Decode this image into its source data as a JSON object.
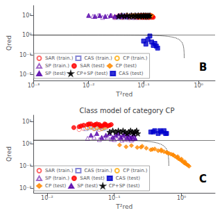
{
  "chart_data": [
    {
      "type": "scatter",
      "panel_label": "B",
      "x_label": "T²red",
      "y_label": "Qred",
      "log": true,
      "grid": false,
      "legend": "lower left",
      "xlim": [
        0.001,
        1.9952623149688795
      ],
      "ylim": [
        0.005011872336272725,
        31.622776601683793
      ],
      "xticks": [
        {
          "value": 0.001,
          "label": "10⁻³"
        },
        {
          "value": 0.01,
          "label": "10⁻²"
        },
        {
          "value": 0.1,
          "label": "10⁻¹"
        },
        {
          "value": 1,
          "label": "10⁰"
        }
      ],
      "yticks": [
        {
          "value": 0.01,
          "label": "10⁻²"
        },
        {
          "value": 0.1,
          "label": "10⁻¹"
        },
        {
          "value": 1,
          "label": "10⁰"
        },
        {
          "value": 10,
          "label": "10¹"
        }
      ],
      "q_limit": 1.0,
      "t_limit": 0.55,
      "series": [
        {
          "name": "SAR (train.)",
          "color": "#FF4444",
          "marker": "circle_open",
          "x": [
            0.03,
            0.034,
            0.038,
            0.042,
            0.046,
            0.05,
            0.055,
            0.058,
            0.06,
            0.064,
            0.068,
            0.072,
            0.076,
            0.08,
            0.085,
            0.09,
            0.095,
            0.1,
            0.105,
            0.11
          ],
          "y": [
            8,
            9,
            10,
            8,
            9,
            10,
            8,
            9,
            10,
            8,
            9,
            10,
            8,
            9,
            10,
            8,
            9,
            10,
            8,
            9
          ]
        },
        {
          "name": "CAS (train.)",
          "color": "#6666CC",
          "marker": "square_open",
          "x": [
            0.035,
            0.04,
            0.045,
            0.05,
            0.055,
            0.06,
            0.065,
            0.07,
            0.075,
            0.08,
            0.085,
            0.09,
            0.095,
            0.1,
            0.105,
            0.11,
            0.115,
            0.12
          ],
          "y": [
            8,
            9,
            10,
            8,
            9,
            10,
            8,
            9,
            10,
            8,
            9,
            10,
            8,
            9,
            10,
            8,
            9,
            8
          ]
        },
        {
          "name": "CP (train.)",
          "color": "#FFAA00",
          "marker": "circle_open",
          "x": [
            0.04,
            0.045,
            0.05,
            0.055,
            0.06,
            0.065,
            0.07,
            0.075,
            0.08,
            0.085,
            0.09,
            0.095,
            0.1,
            0.105,
            0.11,
            0.115,
            0.12,
            0.125,
            0.13
          ],
          "y": [
            8,
            9,
            10,
            8,
            9,
            10,
            8,
            9,
            10,
            8,
            9,
            10,
            8,
            9,
            10,
            8,
            9,
            8,
            9
          ]
        },
        {
          "name": "SP (train.)",
          "color": "#8844BB",
          "marker": "triangle_open",
          "x": [
            0.012,
            0.015,
            0.018,
            0.022,
            0.026,
            0.03,
            0.034,
            0.038,
            0.042,
            0.046,
            0.05,
            0.055,
            0.06,
            0.065,
            0.07,
            0.075,
            0.08
          ],
          "y": [
            9,
            10,
            8,
            9,
            10,
            8,
            9,
            10,
            8,
            9,
            10,
            8,
            9,
            10,
            8,
            9,
            10
          ]
        },
        {
          "name": "SAR (test)",
          "color": "#FF0000",
          "marker": "circle",
          "x": [
            0.08,
            0.085,
            0.09,
            0.095,
            0.1,
            0.105,
            0.11,
            0.115,
            0.12,
            0.125,
            0.13,
            0.135,
            0.14,
            0.145,
            0.15
          ],
          "y": [
            8,
            9,
            10,
            8,
            9,
            10,
            8,
            9,
            10,
            8,
            9,
            10,
            8,
            9,
            8
          ]
        },
        {
          "name": "CP (test)",
          "color": "#FF8800",
          "marker": "diamond",
          "x": [
            0.06,
            0.065,
            0.07,
            0.075,
            0.08,
            0.085,
            0.09,
            0.095,
            0.1,
            0.105,
            0.11,
            0.115,
            0.12,
            0.125,
            0.13,
            0.135,
            0.14
          ],
          "y": [
            10,
            9,
            10,
            9,
            10,
            9,
            10,
            9,
            10,
            9,
            10,
            9,
            10,
            9,
            10,
            9,
            10
          ]
        },
        {
          "name": "SP (test)",
          "color": "#5500AA",
          "marker": "triangle",
          "x": [
            0.01,
            0.013,
            0.016,
            0.02,
            0.025,
            0.03,
            0.035,
            0.04,
            0.045,
            0.05
          ],
          "y": [
            10,
            9,
            10,
            9,
            10,
            9,
            10,
            9,
            10,
            9
          ]
        },
        {
          "name": "CP+SP (test)",
          "color": "#000000",
          "marker": "star",
          "x": [
            0.035,
            0.04,
            0.045,
            0.05,
            0.055,
            0.06,
            0.065,
            0.07,
            0.075,
            0.08,
            0.085,
            0.09,
            0.095,
            0.1,
            0.105,
            0.11,
            0.115,
            0.12,
            0.125,
            0.13
          ],
          "y": [
            9,
            10,
            9,
            10,
            9,
            10,
            9,
            10,
            9,
            10,
            9,
            10,
            9,
            10,
            9,
            10,
            9,
            10,
            9,
            10
          ]
        },
        {
          "name": "CAS (test)",
          "color": "#0000CC",
          "marker": "square",
          "x": [
            0.1,
            0.11,
            0.12,
            0.13,
            0.14,
            0.15,
            0.16,
            0.17,
            0.18
          ],
          "y": [
            0.5,
            0.35,
            0.6,
            0.9,
            0.45,
            0.3,
            0.38,
            0.28,
            0.22
          ]
        }
      ]
    },
    {
      "type": "scatter",
      "panel_label": "C",
      "title": "Class model of category CP",
      "x_label": "T²red",
      "y_label": "Qred",
      "log": true,
      "grid": false,
      "legend": "lower left",
      "xlim": [
        0.00630957344480193,
        3.1622776601683795
      ],
      "ylim": [
        0.00630957344480193,
        19.952623149688797
      ],
      "xticks": [
        {
          "value": 0.01,
          "label": "10⁻²"
        },
        {
          "value": 0.1,
          "label": "10⁻¹"
        },
        {
          "value": 1,
          "label": "10⁰"
        }
      ],
      "yticks": [
        {
          "value": 0.01,
          "label": "10⁻²"
        },
        {
          "value": 0.1,
          "label": "10⁻¹"
        },
        {
          "value": 1,
          "label": "10⁰"
        },
        {
          "value": 10,
          "label": "10¹"
        }
      ],
      "q_limit": 1.5,
      "t_limit": 0.65,
      "series": [
        {
          "name": "SAR (train.)",
          "color": "#FF6666",
          "marker": "circle_open",
          "x": [
            0.03,
            0.035,
            0.04,
            0.045,
            0.05,
            0.055,
            0.06,
            0.065,
            0.07
          ],
          "y": [
            4.5,
            5,
            5.5,
            6,
            5,
            5.5,
            4.5,
            5,
            6
          ]
        },
        {
          "name": "CAS (train.)",
          "color": "#8888CC",
          "marker": "square_open",
          "x": [
            0.038,
            0.043,
            0.048,
            0.053,
            0.058,
            0.063,
            0.068,
            0.073
          ],
          "y": [
            5,
            5.5,
            6,
            5,
            5.5,
            6,
            5,
            5.5
          ]
        },
        {
          "name": "CP (train.)",
          "color": "#FFAA00",
          "marker": "circle_open",
          "x": [
            0.04,
            0.045,
            0.05,
            0.055,
            0.06,
            0.065,
            0.07,
            0.075
          ],
          "y": [
            5.5,
            6,
            5,
            5.5,
            6,
            5,
            5.5,
            6
          ]
        },
        {
          "name": "SP (train.)",
          "color": "#8844BB",
          "marker": "triangle_open",
          "x": [
            0.04,
            0.05,
            0.06,
            0.07,
            0.08,
            0.09,
            0.1,
            0.11,
            0.12,
            0.13,
            0.14,
            0.15,
            0.16,
            0.17,
            0.18,
            0.19,
            0.2
          ],
          "y": [
            1.8,
            2.0,
            1.6,
            1.9,
            2.1,
            1.7,
            1.6,
            1.8,
            2.0,
            1.5,
            1.7,
            1.9,
            1.6,
            1.8,
            1.5,
            1.7,
            1.9
          ]
        },
        {
          "name": "SAR (test)",
          "color": "#FF0000",
          "marker": "circle",
          "x": [
            0.03,
            0.035,
            0.04,
            0.045,
            0.05,
            0.055,
            0.06,
            0.065,
            0.07,
            0.075,
            0.08,
            0.085,
            0.09,
            0.025,
            0.032,
            0.042,
            0.052,
            0.062,
            0.072
          ],
          "y": [
            6,
            7,
            7.5,
            8,
            7,
            8,
            7.5,
            6.5,
            7,
            7.5,
            6.5,
            7,
            7.5,
            5.5,
            6.5,
            8,
            7.5,
            6.5,
            8
          ]
        },
        {
          "name": "CAS (test)",
          "color": "#0000CC",
          "marker": "square",
          "x": [
            0.35,
            0.4,
            0.45,
            0.5,
            0.55,
            0.6,
            0.38,
            0.48,
            0.58
          ],
          "y": [
            3.5,
            4,
            3,
            3.5,
            4,
            3,
            3.5,
            4,
            3
          ]
        },
        {
          "name": "CP (test)",
          "color": "#FF8800",
          "marker": "diamond",
          "x": [
            0.12,
            0.15,
            0.18,
            0.22,
            0.26,
            0.3,
            0.35,
            0.4,
            0.45,
            0.5,
            0.55,
            0.6,
            0.65,
            0.7,
            0.75,
            0.8,
            0.85,
            0.9,
            0.95,
            1.0,
            1.05,
            1.1,
            1.15,
            1.2,
            1.25,
            1.3,
            0.25,
            0.37,
            0.5,
            0.62,
            0.75,
            0.88,
            1.0,
            1.12
          ],
          "y": [
            0.9,
            0.75,
            0.85,
            0.7,
            0.8,
            0.65,
            0.55,
            0.6,
            0.5,
            0.55,
            0.45,
            0.42,
            0.38,
            0.35,
            0.32,
            0.28,
            0.25,
            0.22,
            0.2,
            0.18,
            0.16,
            0.14,
            0.13,
            0.12,
            0.11,
            0.1,
            0.72,
            0.58,
            0.48,
            0.4,
            0.33,
            0.27,
            0.21,
            0.16
          ]
        },
        {
          "name": "SP (test)",
          "color": "#5500AA",
          "marker": "triangle",
          "x": [
            0.045,
            0.055,
            0.065,
            0.075,
            0.085,
            0.095,
            0.105,
            0.115,
            0.125,
            0.135,
            0.145,
            0.155,
            0.165,
            0.175,
            0.185,
            0.195,
            0.205
          ],
          "y": [
            2.5,
            3.0,
            2.0,
            2.5,
            3.0,
            2.0,
            2.5,
            3.0,
            2.0,
            2.5,
            3.0,
            2.0,
            2.5,
            1.8,
            2.2,
            2.8,
            1.8
          ]
        },
        {
          "name": "CP+SP (test)",
          "color": "#000000",
          "marker": "star",
          "x": [
            0.085,
            0.095,
            0.105,
            0.115,
            0.125,
            0.135,
            0.145,
            0.155,
            0.165,
            0.175,
            0.185,
            0.195,
            0.205,
            0.215,
            0.225
          ],
          "y": [
            3.5,
            4.0,
            3.5,
            4.0,
            3.5,
            4.0,
            3.5,
            3.0,
            3.5,
            4.0,
            3.5,
            3.0,
            3.5,
            4.0,
            3.0
          ]
        }
      ]
    }
  ]
}
